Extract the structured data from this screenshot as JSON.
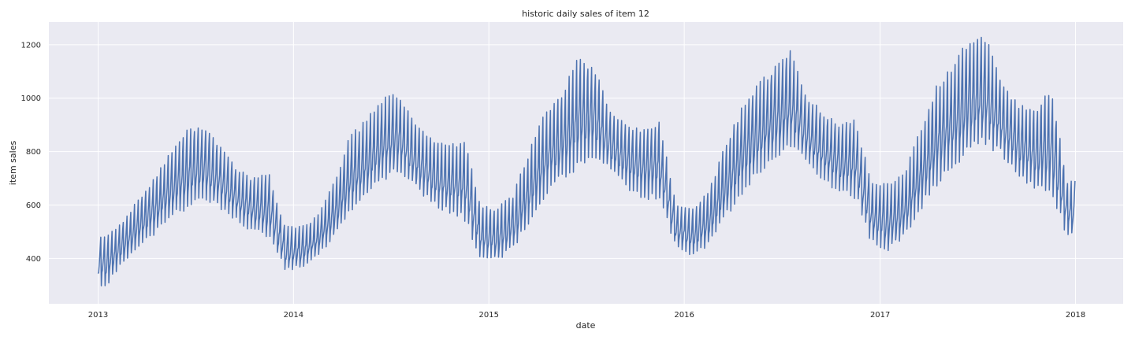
{
  "chart_data": {
    "type": "line",
    "title": "historic daily sales of item 12",
    "xlabel": "date",
    "ylabel": "item sales",
    "x_start": "2013-01-01",
    "x_end": "2017-12-31",
    "xlim": [
      "2012-10-01",
      "2018-03-31"
    ],
    "ylim": [
      230,
      1285
    ],
    "x_ticks": [
      "2013-01-01",
      "2014-01-01",
      "2015-01-01",
      "2016-01-01",
      "2017-01-01",
      "2018-01-01"
    ],
    "x_tick_labels": [
      "2013",
      "2014",
      "2015",
      "2016",
      "2017",
      "2018"
    ],
    "y_ticks": [
      400,
      600,
      800,
      1000,
      1200
    ],
    "y_tick_labels": [
      "400",
      "600",
      "800",
      "1000",
      "1200"
    ],
    "grid": true,
    "colors": {
      "line": "#4c72b0",
      "plot_bg": "#eaeaf2",
      "grid": "#ffffff"
    },
    "series": [
      {
        "monthly_pattern": {
          "months": [
            "2013-01",
            "2013-02",
            "2013-03",
            "2013-04",
            "2013-05",
            "2013-06",
            "2013-07",
            "2013-08",
            "2013-09",
            "2013-10",
            "2013-11",
            "2013-12",
            "2014-01",
            "2014-02",
            "2014-03",
            "2014-04",
            "2014-05",
            "2014-06",
            "2014-07",
            "2014-08",
            "2014-09",
            "2014-10",
            "2014-11",
            "2014-12",
            "2015-01",
            "2015-02",
            "2015-03",
            "2015-04",
            "2015-05",
            "2015-06",
            "2015-07",
            "2015-08",
            "2015-09",
            "2015-10",
            "2015-11",
            "2015-12",
            "2016-01",
            "2016-02",
            "2016-03",
            "2016-04",
            "2016-05",
            "2016-06",
            "2016-07",
            "2016-08",
            "2016-09",
            "2016-10",
            "2016-11",
            "2016-12",
            "2017-01",
            "2017-02",
            "2017-03",
            "2017-04",
            "2017-05",
            "2017-06",
            "2017-07",
            "2017-08",
            "2017-09",
            "2017-10",
            "2017-11",
            "2017-12"
          ],
          "low": [
            280,
            360,
            420,
            470,
            520,
            560,
            590,
            560,
            520,
            480,
            450,
            340,
            350,
            390,
            450,
            540,
            610,
            660,
            700,
            640,
            580,
            550,
            520,
            380,
            370,
            420,
            500,
            600,
            660,
            700,
            740,
            700,
            640,
            600,
            590,
            420,
            380,
            430,
            520,
            600,
            680,
            730,
            770,
            730,
            660,
            620,
            600,
            430,
            400,
            450,
            550,
            640,
            700,
            760,
            790,
            760,
            680,
            640,
            600,
            460
          ],
          "high": [
            480,
            540,
            620,
            700,
            800,
            880,
            900,
            820,
            740,
            700,
            720,
            520,
            520,
            560,
            680,
            860,
            920,
            1000,
            1020,
            900,
            850,
            820,
            850,
            600,
            590,
            640,
            800,
            950,
            1020,
            1150,
            1120,
            950,
            900,
            880,
            920,
            600,
            590,
            650,
            820,
            960,
            1050,
            1120,
            1180,
            1010,
            950,
            900,
            920,
            680,
            680,
            720,
            880,
            1050,
            1120,
            1230,
            1240,
            1050,
            980,
            950,
            1050,
            690
          ]
        }
      }
    ]
  }
}
